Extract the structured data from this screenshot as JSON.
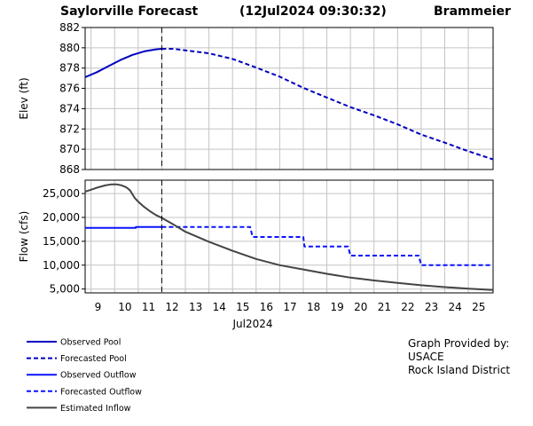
{
  "header": {
    "title": "Saylorville  Forecast",
    "timestamp": "(12Jul2024  09:30:32)",
    "author": "Brammeier"
  },
  "credit": [
    "Graph Provided by:",
    "USACE",
    "Rock Island District"
  ],
  "colors": {
    "pool": "#0000c0",
    "outflow": "#0a14ff",
    "inflow": "#444444",
    "grid": "#c4c4c4",
    "marker": "#000000"
  },
  "chart_data": {
    "type": "line",
    "now_marker_day": 12.0,
    "x_axis": {
      "range": [
        8.75,
        26.05
      ],
      "tick_days": [
        9,
        10,
        11,
        12,
        13,
        14,
        15,
        16,
        17,
        18,
        19,
        20,
        21,
        22,
        23,
        24,
        25
      ],
      "tick_labels": [
        "9",
        "10",
        "11",
        "12",
        "13",
        "14",
        "15",
        "16",
        "17",
        "18",
        "19",
        "20",
        "21",
        "22",
        "23",
        "24",
        "25"
      ],
      "sublabel": "Jul2024"
    },
    "elevation_panel": {
      "ylabel": "Elev (ft)",
      "ylim": [
        868,
        882
      ],
      "yticks": [
        868,
        870,
        872,
        874,
        876,
        878,
        880,
        882
      ],
      "ytick_labels": [
        "868",
        "870",
        "872",
        "874",
        "876",
        "878",
        "880",
        "882"
      ],
      "series": [
        {
          "name": "Observed Pool",
          "style": "solid",
          "x": [
            8.75,
            9.25,
            9.75,
            10.25,
            10.75,
            11.25,
            11.75,
            12.0
          ],
          "y": [
            877.1,
            877.6,
            878.2,
            878.8,
            879.3,
            879.65,
            879.85,
            879.9
          ]
        },
        {
          "name": "Forecasted Pool",
          "style": "dashed",
          "x": [
            12.0,
            12.5,
            13,
            14,
            15,
            16,
            17,
            18,
            19,
            20,
            21,
            22,
            23,
            24,
            25,
            26.05
          ],
          "y": [
            879.9,
            879.9,
            879.75,
            879.45,
            878.9,
            878.05,
            877.15,
            876.05,
            875.1,
            874.15,
            873.35,
            872.45,
            871.45,
            870.65,
            869.8,
            869.0
          ]
        }
      ]
    },
    "flow_panel": {
      "ylabel": "Flow (cfs)",
      "ylim": [
        4200,
        27800
      ],
      "yticks": [
        5000,
        10000,
        15000,
        20000,
        25000
      ],
      "ytick_labels": [
        "5,000",
        "10,000",
        "15,000",
        "20,000",
        "25,000"
      ],
      "series": [
        {
          "name": "Observed Outflow",
          "style": "solid",
          "x": [
            8.75,
            10.9,
            10.9,
            12.0
          ],
          "y": [
            17800,
            17800,
            18000,
            18000
          ]
        },
        {
          "name": "Forecasted Outflow",
          "style": "dashed",
          "x": [
            12.0,
            15.75,
            15.85,
            18.0,
            18.05,
            19.9,
            20.0,
            22.9,
            23.0,
            26.05
          ],
          "y": [
            18000,
            18000,
            15900,
            15900,
            13900,
            13900,
            12000,
            12000,
            10000,
            10000
          ]
        },
        {
          "name": "Estimated Inflow",
          "style": "solid",
          "x": [
            8.75,
            9.0,
            9.3,
            9.6,
            9.85,
            10.1,
            10.3,
            10.5,
            10.65,
            10.85,
            11.0,
            11.25,
            11.5,
            11.75,
            12.0,
            12.5,
            13,
            14,
            15,
            16,
            17,
            18,
            19,
            20,
            21,
            22,
            23,
            24,
            25,
            26.05
          ],
          "y": [
            25400,
            25800,
            26300,
            26700,
            26900,
            26900,
            26700,
            26300,
            25700,
            24100,
            23300,
            22200,
            21300,
            20500,
            19900,
            18500,
            17000,
            14900,
            13000,
            11300,
            10000,
            9100,
            8200,
            7400,
            6800,
            6300,
            5800,
            5400,
            5100,
            4800
          ]
        }
      ]
    },
    "legend": [
      {
        "label": "Observed Pool",
        "style": "solid",
        "color_key": "pool"
      },
      {
        "label": "Forecasted Pool",
        "style": "dashed",
        "color_key": "pool"
      },
      {
        "label": "Observed Outflow",
        "style": "solid",
        "color_key": "outflow"
      },
      {
        "label": "Forecasted Outflow",
        "style": "dashed",
        "color_key": "outflow"
      },
      {
        "label": "Estimated Inflow",
        "style": "solid",
        "color_key": "inflow"
      }
    ]
  }
}
